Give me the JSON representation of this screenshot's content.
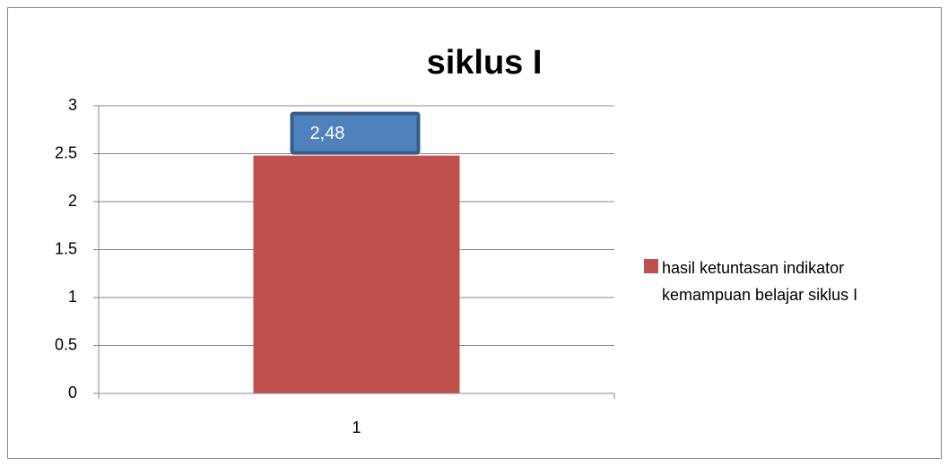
{
  "chart_data": {
    "type": "bar",
    "title": "siklus I",
    "categories": [
      "1"
    ],
    "series": [
      {
        "name": "hasil ketuntasan indikator kemampuan belajar siklus I",
        "color": "#c0504d",
        "values": [
          2.48
        ],
        "value_labels": [
          "2,48"
        ]
      }
    ],
    "ylim": [
      0,
      3
    ],
    "yticks": [
      0,
      0.5,
      1,
      1.5,
      2,
      2.5,
      3
    ],
    "grid": true,
    "legend": "right"
  }
}
